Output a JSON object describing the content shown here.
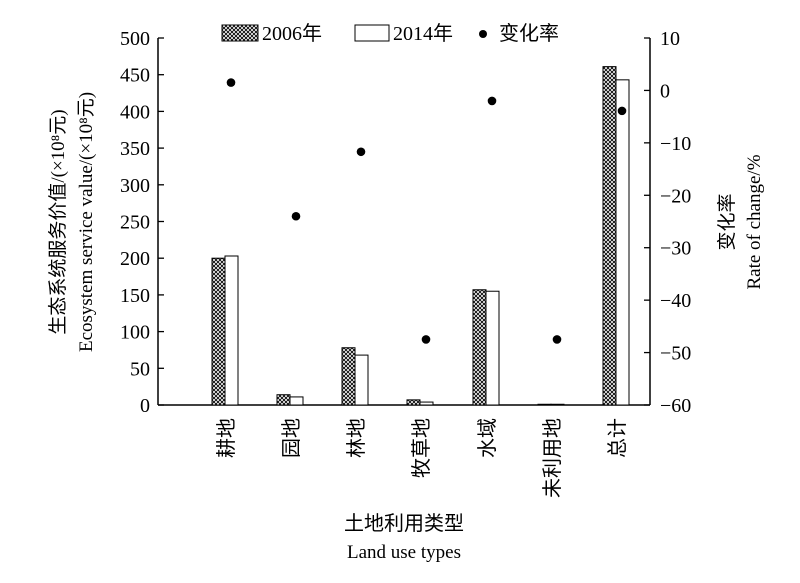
{
  "chart_data": {
    "type": "bar",
    "title": "",
    "categories": [
      "耕地",
      "园地",
      "林地",
      "牧草地",
      "水域",
      "未利用地",
      "总计"
    ],
    "series": [
      {
        "name": "2006年",
        "axis": "left",
        "kind": "bar",
        "pattern": "crosshatch",
        "values": [
          200,
          14,
          78,
          7,
          157,
          1,
          461
        ]
      },
      {
        "name": "2014年",
        "axis": "left",
        "kind": "bar",
        "pattern": "hollow",
        "values": [
          203,
          11,
          68,
          4,
          155,
          1,
          443
        ]
      },
      {
        "name": "变化率",
        "axis": "right",
        "kind": "point",
        "marker": "dot",
        "values": [
          1.5,
          -24,
          -11.7,
          -47.5,
          -2,
          -47.5,
          -3.9
        ]
      }
    ],
    "y_left": {
      "label_cn": "生态系统服务价值/(×10⁸元)",
      "label_en": "Ecosystem service value/(×10⁸元)",
      "ylim": [
        0,
        500
      ],
      "ticks": [
        "0",
        "50",
        "100",
        "150",
        "200",
        "250",
        "300",
        "350",
        "400",
        "450",
        "500"
      ]
    },
    "y_right": {
      "label_cn": "变化率",
      "label_en": "Rate of change/%",
      "ylim": [
        -60,
        10
      ],
      "ticks": [
        "−60",
        "−50",
        "−40",
        "−30",
        "−20",
        "−10",
        "0",
        "10"
      ]
    },
    "x_axis": {
      "label_cn": "土地利用类型",
      "label_en": "Land use types"
    },
    "legend": {
      "placement": "top",
      "items": [
        "2006年",
        "2014年",
        "变化率"
      ]
    },
    "grid": false,
    "colors": {
      "ink": "#000000",
      "fill": "#ffffff"
    }
  }
}
